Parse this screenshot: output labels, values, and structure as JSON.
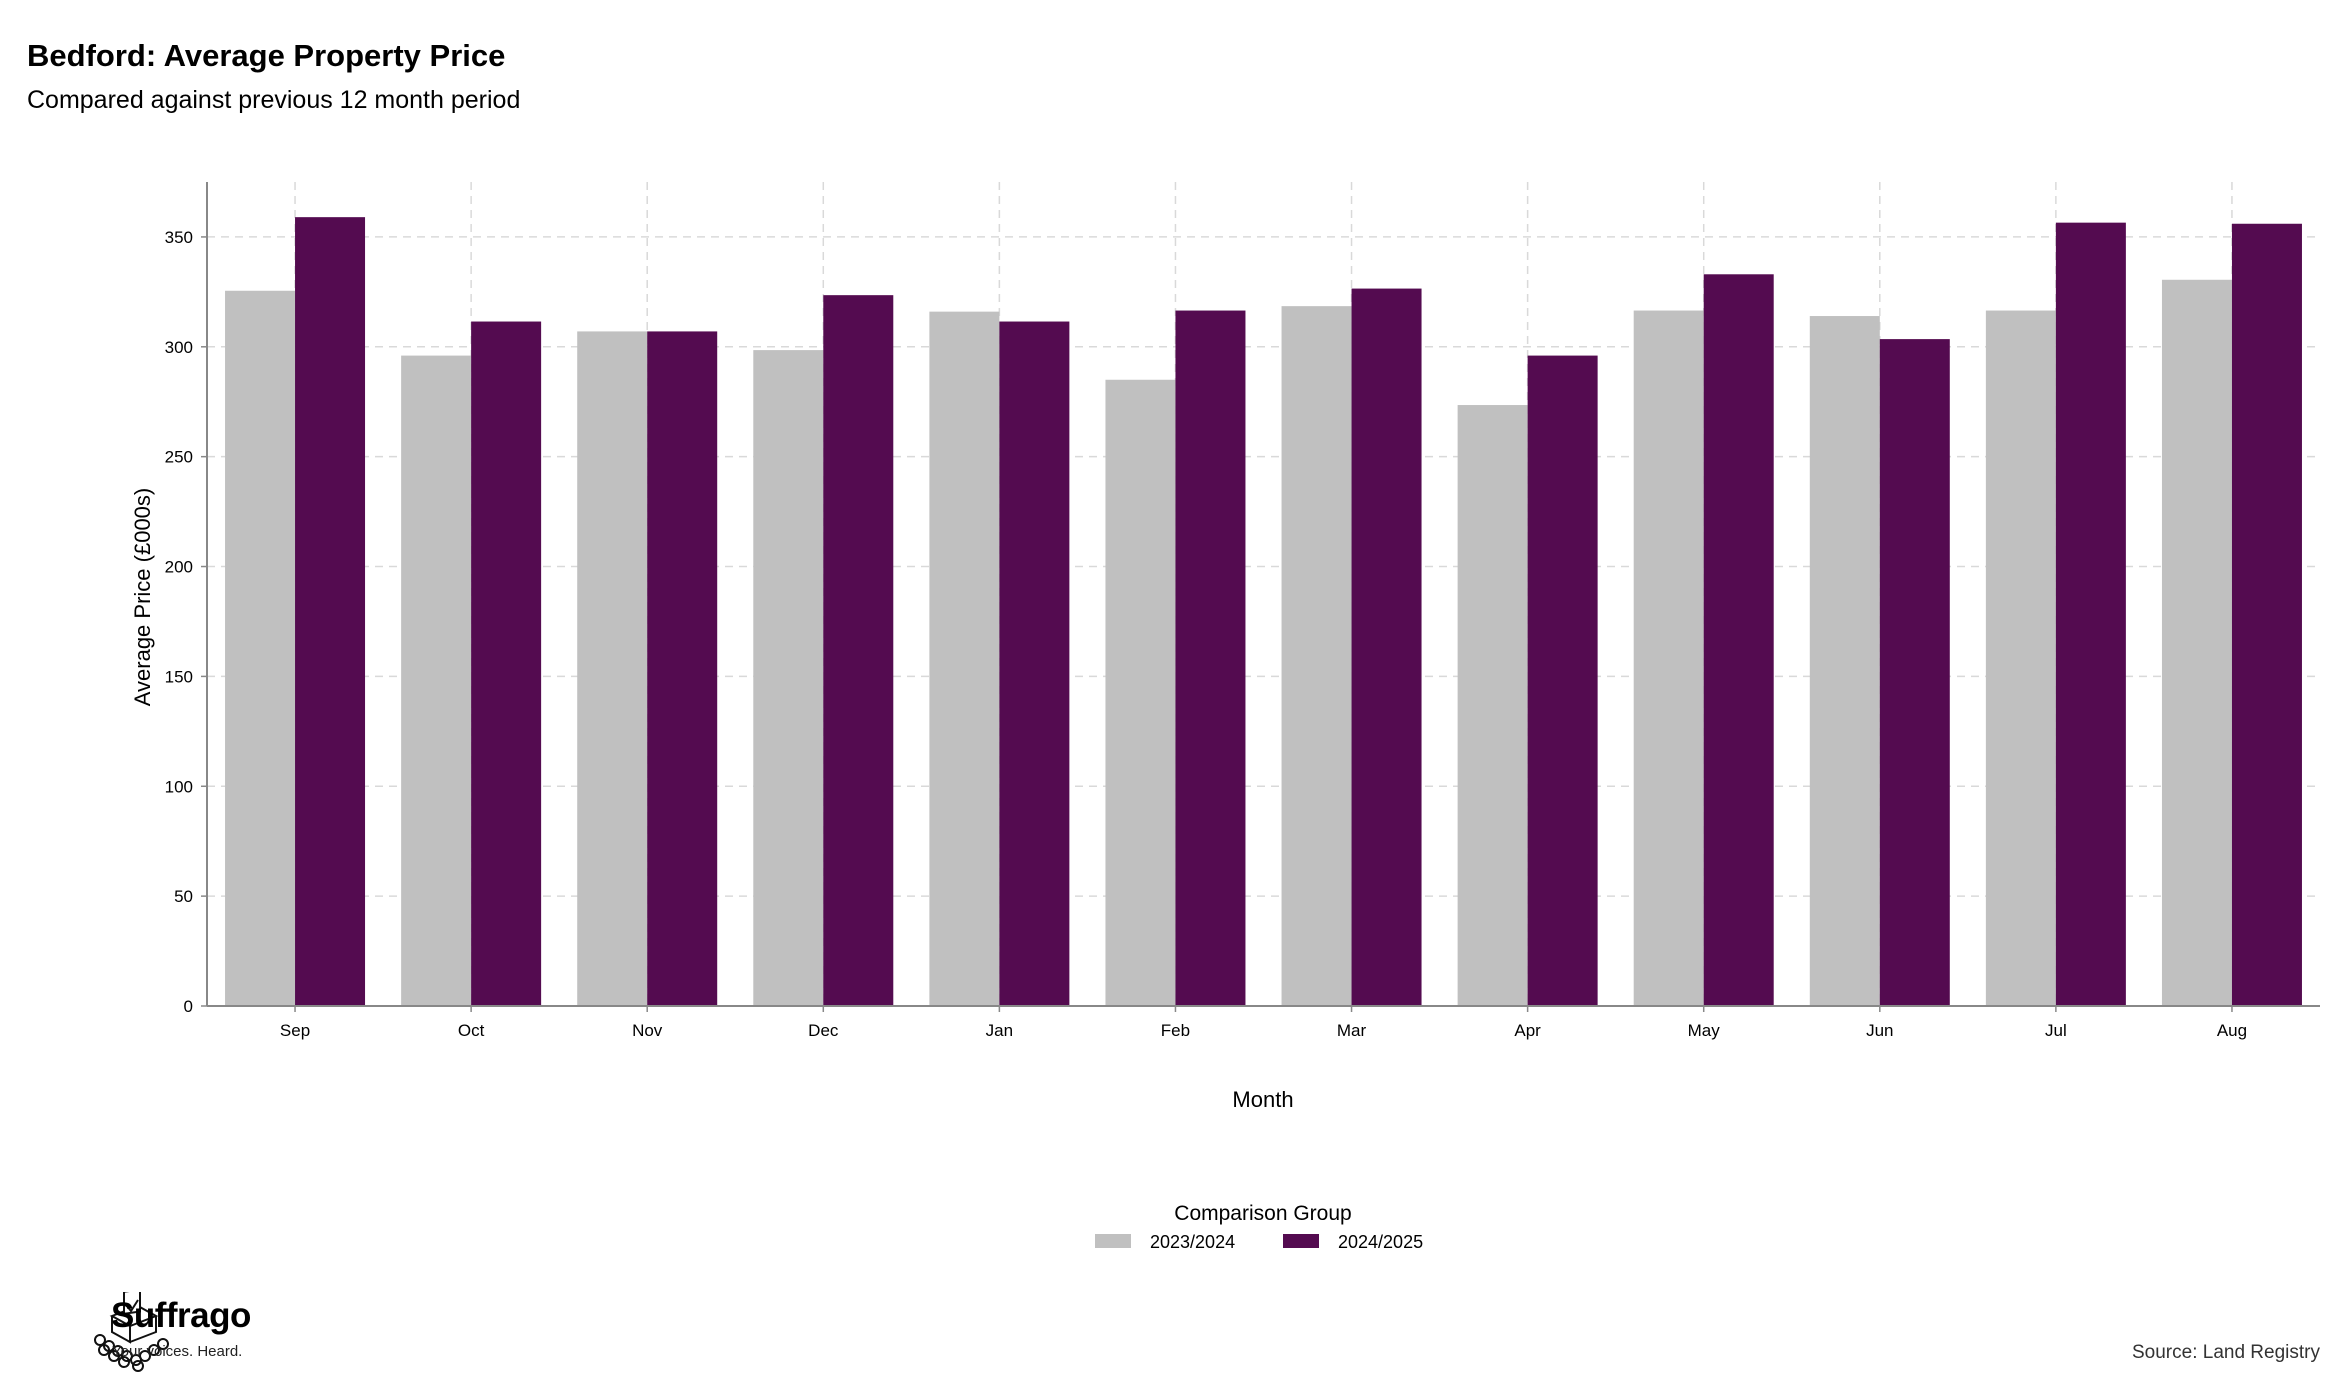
{
  "chart_data": {
    "type": "bar",
    "title": "Bedford: Average Property Price",
    "subtitle": "Compared against previous 12 month period",
    "xlabel": "Month",
    "ylabel": "Average Price (£000s)",
    "ylim": [
      0,
      375
    ],
    "yticks": [
      0,
      50,
      100,
      150,
      200,
      250,
      300,
      350
    ],
    "grid": true,
    "legend_title": "Comparison Group",
    "legend_position": "bottom",
    "categories": [
      "Sep",
      "Oct",
      "Nov",
      "Dec",
      "Jan",
      "Feb",
      "Mar",
      "Apr",
      "May",
      "Jun",
      "Jul",
      "Aug"
    ],
    "series": [
      {
        "name": "2023/2024",
        "color": "#c0c0c0",
        "values": [
          325.5,
          296,
          307,
          298.5,
          316,
          285,
          318.5,
          273.5,
          316.5,
          314,
          316.5,
          330.5
        ]
      },
      {
        "name": "2024/2025",
        "color": "#540b50",
        "values": [
          359,
          311.5,
          307,
          323.5,
          311.5,
          316.5,
          326.5,
          296,
          333,
          303.5,
          356.5,
          356
        ]
      }
    ]
  },
  "brand": {
    "name": "Suffrago",
    "tagline": "Your voices. Heard.",
    "logo_icon": "ballot-box-with-crowd-icon"
  },
  "source_note": "Source: Land Registry"
}
